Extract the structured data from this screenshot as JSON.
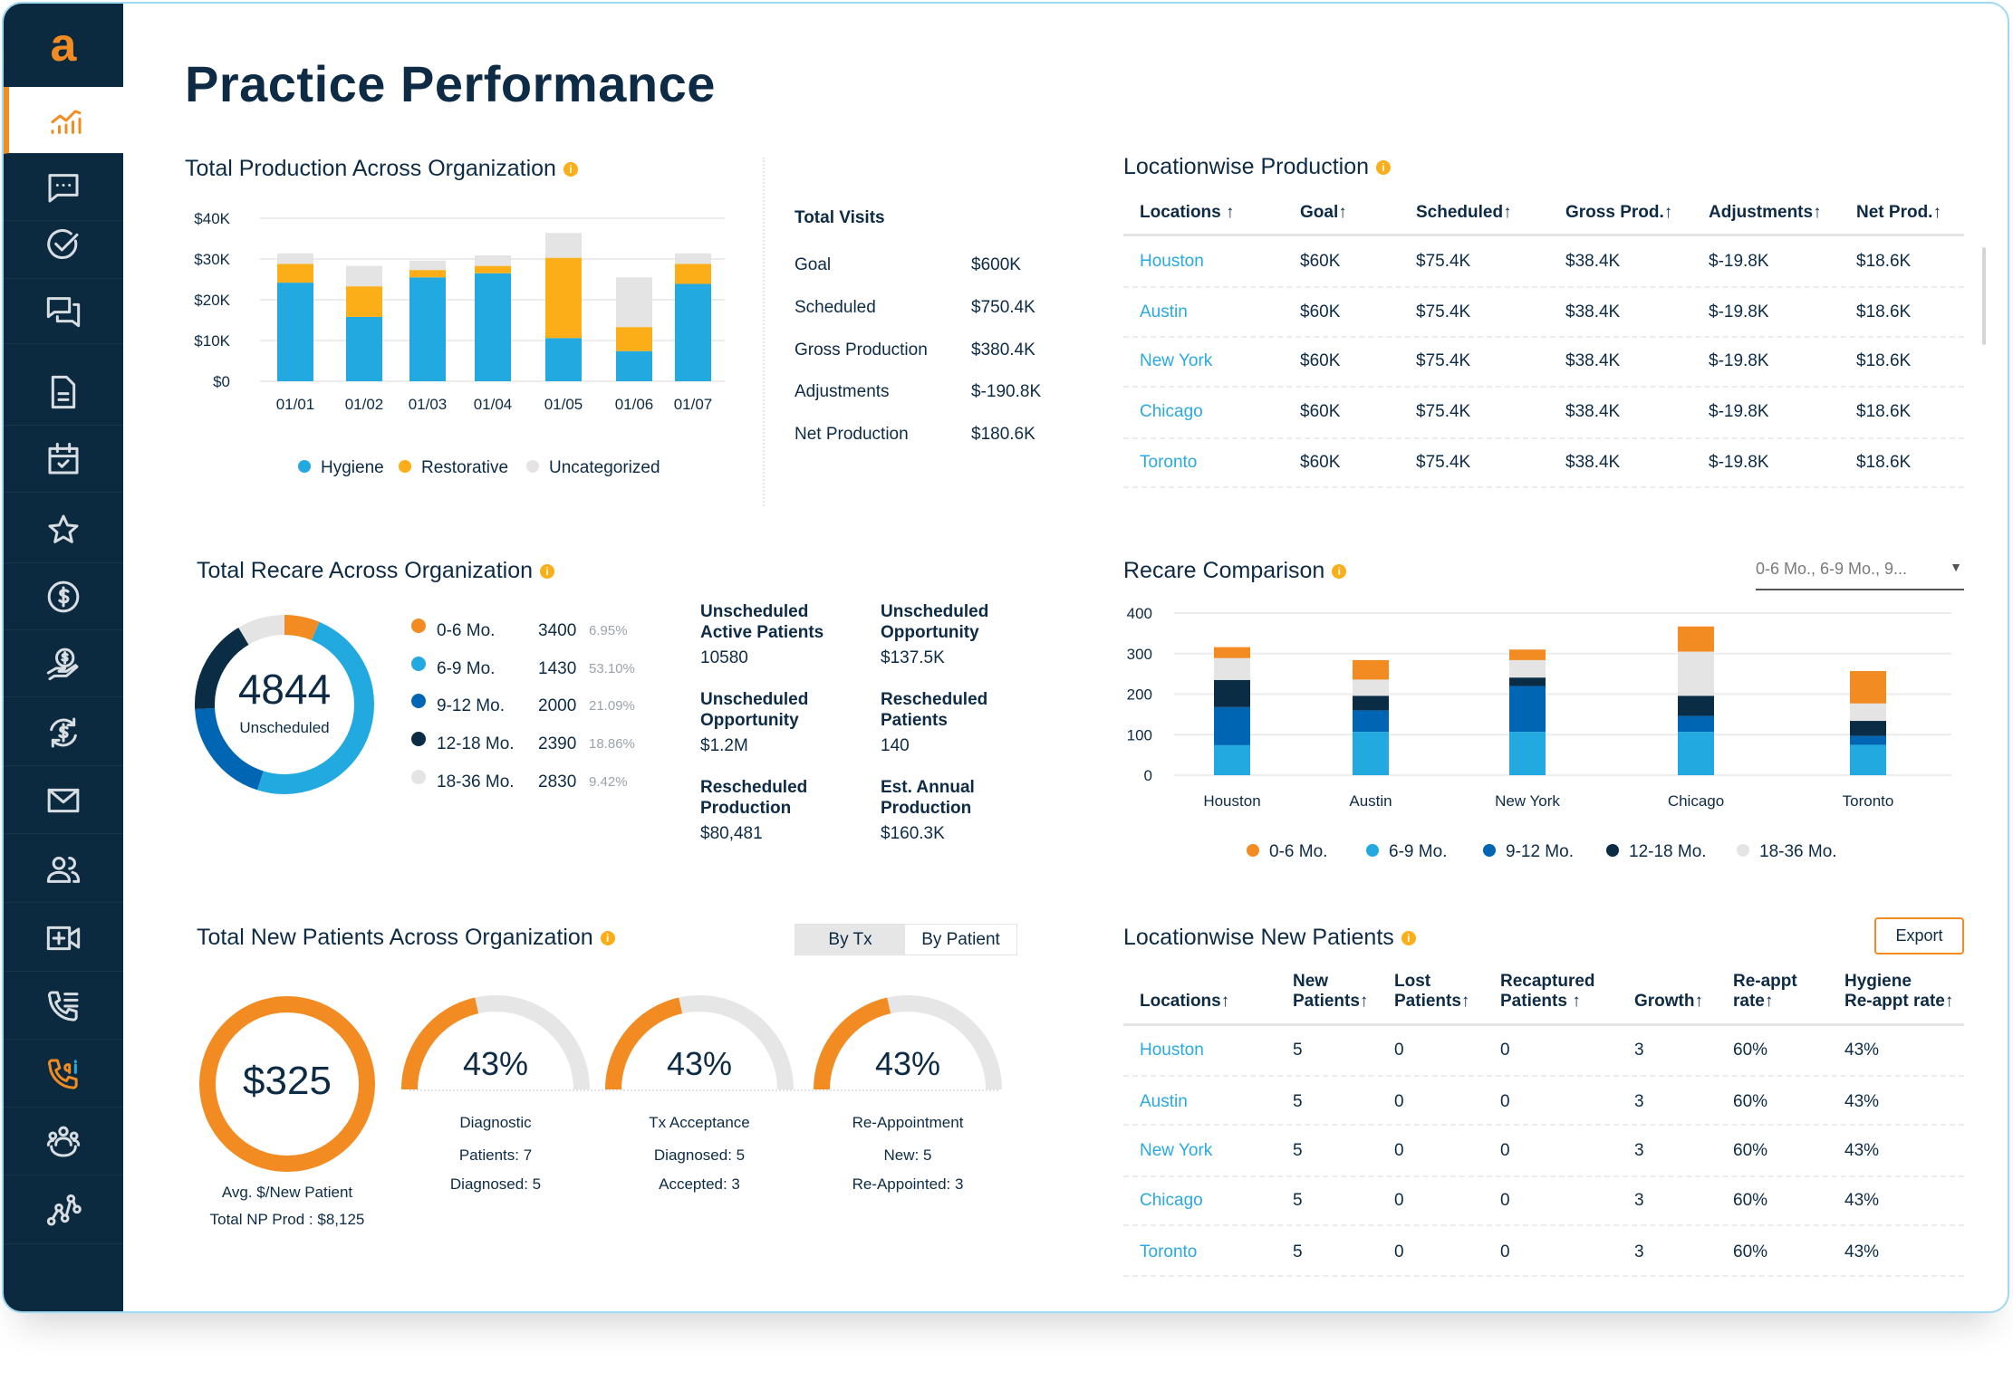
{
  "page_title": "Practice Performance",
  "colors": {
    "navy": "#0d2b45",
    "link": "#29a9e0",
    "orange": "#f28c22",
    "yellow": "#fbae17",
    "sky": "#22a9e0",
    "blue": "#0066b3",
    "dark": "#0a2c44",
    "gray": "#e4e4e4"
  },
  "sidebar": {
    "logo": "a",
    "items": [
      {
        "icon": "analytics-chart-icon",
        "active": true
      },
      {
        "icon": "chat-bubble-icon"
      },
      {
        "icon": "check-circle-icon"
      },
      {
        "icon": "conversation-icon"
      },
      {
        "icon": "document-icon"
      },
      {
        "icon": "calendar-check-icon"
      },
      {
        "icon": "star-icon"
      },
      {
        "icon": "dollar-circle-icon"
      },
      {
        "icon": "hand-dollar-icon"
      },
      {
        "icon": "dollar-refresh-icon"
      },
      {
        "icon": "mail-icon"
      },
      {
        "icon": "users-icon"
      },
      {
        "icon": "video-add-icon"
      },
      {
        "icon": "phone-list-icon"
      },
      {
        "icon": "ai-phone-icon",
        "accent": true
      },
      {
        "icon": "team-icon"
      },
      {
        "icon": "workflow-icon"
      }
    ]
  },
  "production": {
    "title": "Total Production Across Organization",
    "chart_data": {
      "type": "bar",
      "stacked": true,
      "categories": [
        "01/01",
        "01/02",
        "01/03",
        "01/04",
        "01/05",
        "01/06",
        "01/07"
      ],
      "series": [
        {
          "name": "Hygiene",
          "color": "#22a9e0",
          "values": [
            24.2,
            15.8,
            25.5,
            26.5,
            10.6,
            7.4,
            23.9
          ]
        },
        {
          "name": "Restorative",
          "color": "#fbae17",
          "values": [
            4.6,
            7.5,
            1.8,
            1.8,
            19.7,
            5.9,
            4.9
          ]
        },
        {
          "name": "Uncategorized",
          "color": "#e4e4e4",
          "values": [
            2.6,
            5.0,
            2.3,
            2.6,
            6.1,
            12.2,
            2.6
          ]
        }
      ],
      "units": "$K",
      "ylim": [
        0,
        40
      ],
      "yticks": [
        "$0",
        "$10K",
        "$20K",
        "$30K",
        "$40K"
      ],
      "grid": true,
      "legend": "bottom"
    }
  },
  "visits": {
    "title": "Total Visits",
    "rows": [
      {
        "label": "Goal",
        "value": "$600K"
      },
      {
        "label": "Scheduled",
        "value": "$750.4K"
      },
      {
        "label": "Gross Production",
        "value": "$380.4K"
      },
      {
        "label": "Adjustments",
        "value": "$-190.8K"
      },
      {
        "label": "Net Production",
        "value": "$180.6K"
      }
    ]
  },
  "loc_production": {
    "title": "Locationwise Production",
    "columns": [
      "Locations ↑",
      "Goal↑",
      "Scheduled↑",
      "Gross Prod.↑",
      "Adjustments↑",
      "Net Prod.↑"
    ],
    "rows": [
      [
        "Houston",
        "$60K",
        "$75.4K",
        "$38.4K",
        "$-19.8K",
        "$18.6K"
      ],
      [
        "Austin",
        "$60K",
        "$75.4K",
        "$38.4K",
        "$-19.8K",
        "$18.6K"
      ],
      [
        "New York",
        "$60K",
        "$75.4K",
        "$38.4K",
        "$-19.8K",
        "$18.6K"
      ],
      [
        "Chicago",
        "$60K",
        "$75.4K",
        "$38.4K",
        "$-19.8K",
        "$18.6K"
      ],
      [
        "Toronto",
        "$60K",
        "$75.4K",
        "$38.4K",
        "$-19.8K",
        "$18.6K"
      ]
    ]
  },
  "recare": {
    "title": "Total Recare Across Organization",
    "total": "4844",
    "total_label": "Unscheduled",
    "chart_data": {
      "type": "pie",
      "donut": true,
      "segments": [
        {
          "label": "0-6 Mo.",
          "value": "3400",
          "pct": "6.95%",
          "pct_value": 6.95,
          "color": "#f28c22"
        },
        {
          "label": "6-9 Mo.",
          "value": "1430",
          "pct": "53.10%",
          "pct_value": 53.1,
          "color": "#22a9e0"
        },
        {
          "label": "9-12 Mo.",
          "value": "2000",
          "pct": "21.09%",
          "pct_value": 21.09,
          "color": "#0066b3"
        },
        {
          "label": "12-18 Mo.",
          "value": "2390",
          "pct": "18.86%",
          "pct_value": 18.86,
          "color": "#0a2c44"
        },
        {
          "label": "18-36 Mo.",
          "value": "2830",
          "pct": "9.42%",
          "pct_value": 9.42,
          "color": "#e4e4e4"
        }
      ]
    },
    "stats": [
      {
        "label": "Unscheduled\nActive Patients",
        "value": "10580"
      },
      {
        "label": "Unscheduled\nOpportunity",
        "value": "$137.5K"
      },
      {
        "label": "Unscheduled\nOpportunity",
        "value": "$1.2M"
      },
      {
        "label": "Rescheduled\nPatients",
        "value": "140"
      },
      {
        "label": "Rescheduled\nProduction",
        "value": "$80,481"
      },
      {
        "label": "Est. Annual\nProduction",
        "value": "$160.3K"
      }
    ]
  },
  "recare_comparison": {
    "title": "Recare Comparison",
    "filter_value": "0-6 Mo., 6-9 Mo., 9...",
    "chart_data": {
      "type": "bar",
      "stacked": true,
      "categories": [
        "Houston",
        "Austin",
        "New York",
        "Chicago",
        "Toronto"
      ],
      "series": [
        {
          "name": "6-9 Mo.",
          "color": "#22a9e0",
          "values": [
            74,
            107,
            107,
            107,
            75
          ]
        },
        {
          "name": "9-12 Mo.",
          "color": "#0066b3",
          "values": [
            94,
            53,
            113,
            39,
            22
          ]
        },
        {
          "name": "12-18 Mo.",
          "color": "#0a2c44",
          "values": [
            67,
            36,
            21,
            50,
            37
          ]
        },
        {
          "name": "18-36 Mo.",
          "color": "#e4e4e4",
          "values": [
            54,
            40,
            43,
            109,
            43
          ]
        },
        {
          "name": "0-6 Mo.",
          "color": "#f28c22",
          "values": [
            27,
            48,
            26,
            62,
            80
          ]
        }
      ],
      "legend_order": [
        "0-6 Mo.",
        "6-9 Mo.",
        "9-12 Mo.",
        "12-18 Mo.",
        "18-36 Mo."
      ],
      "ylim": [
        0,
        400
      ],
      "yticks": [
        "0",
        "100",
        "200",
        "300",
        "400"
      ],
      "grid": true,
      "legend": "bottom"
    }
  },
  "new_patients": {
    "title": "Total New Patients Across Organization",
    "toggle": {
      "options": [
        "By Tx",
        "By Patient"
      ],
      "selected": "By Tx"
    },
    "avg": {
      "value": "$325",
      "label": "Avg. $/New Patient",
      "total": "Total NP Prod : $8,125"
    },
    "gauges": [
      {
        "pct_label": "43%",
        "pct": 43,
        "title": "Diagnostic",
        "lines": [
          "Patients: 7",
          "Diagnosed: 5"
        ]
      },
      {
        "pct_label": "43%",
        "pct": 43,
        "title": "Tx Acceptance",
        "lines": [
          "Diagnosed: 5",
          "Accepted: 3"
        ]
      },
      {
        "pct_label": "43%",
        "pct": 43,
        "title": "Re-Appointment",
        "lines": [
          "New: 5",
          "Re-Appointed: 3"
        ]
      }
    ]
  },
  "loc_new_patients": {
    "title": "Locationwise New Patients",
    "export_label": "Export",
    "columns": [
      "Locations↑",
      "New\nPatients↑",
      "Lost\nPatients↑",
      "Recaptured\nPatients ↑",
      "Growth↑",
      "Re-appt\nrate↑",
      "Hygiene\nRe-appt rate↑"
    ],
    "rows": [
      [
        "Houston",
        "5",
        "0",
        "0",
        "3",
        "60%",
        "43%"
      ],
      [
        "Austin",
        "5",
        "0",
        "0",
        "3",
        "60%",
        "43%"
      ],
      [
        "New York",
        "5",
        "0",
        "0",
        "3",
        "60%",
        "43%"
      ],
      [
        "Chicago",
        "5",
        "0",
        "0",
        "3",
        "60%",
        "43%"
      ],
      [
        "Toronto",
        "5",
        "0",
        "0",
        "3",
        "60%",
        "43%"
      ]
    ]
  }
}
